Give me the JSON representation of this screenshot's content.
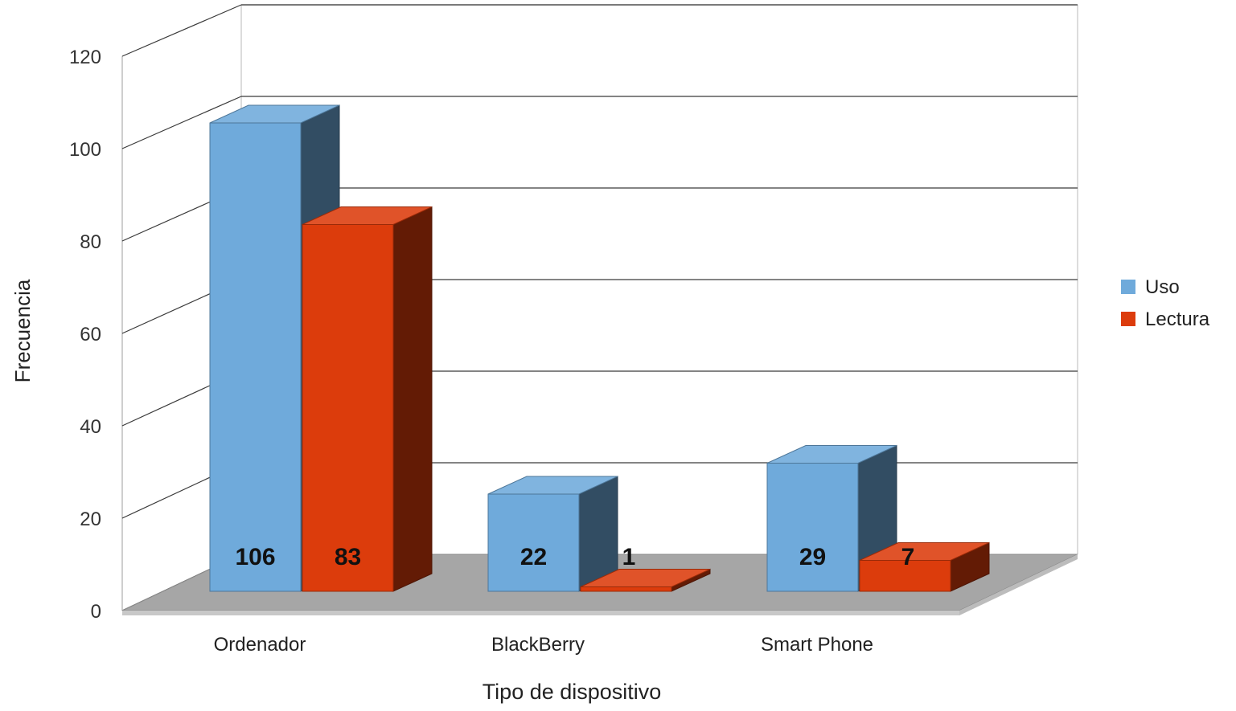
{
  "chart_data": {
    "type": "bar",
    "title": "",
    "xlabel": "Tipo de dispositivo",
    "ylabel": "Frecuencia",
    "categories": [
      "Ordenador",
      "BlackBerry",
      "Smart Phone"
    ],
    "series": [
      {
        "name": "Uso",
        "values": [
          106,
          22,
          29
        ],
        "color": "#6faadb"
      },
      {
        "name": "Lectura",
        "values": [
          83,
          1,
          7
        ],
        "color": "#dc3c0c"
      }
    ],
    "ylim": [
      0,
      120
    ],
    "yticks": [
      "0",
      "20",
      "40",
      "60",
      "80",
      "100",
      "120"
    ],
    "grid": true,
    "legend_position": "right",
    "floor_color": "#a6a6a6"
  }
}
